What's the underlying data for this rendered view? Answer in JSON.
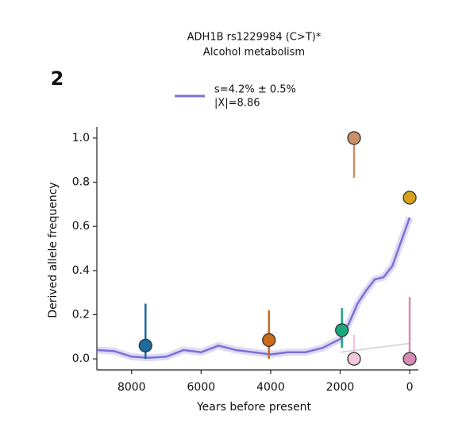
{
  "chart_data": {
    "type": "line",
    "panel_label": "2",
    "title": "ADH1B rs1229984 (C>T)*",
    "subtitle": "Alcohol metabolism",
    "xlabel": "Years before present",
    "ylabel": "Derived allele frequency",
    "xlim": [
      9000,
      -250
    ],
    "ylim": [
      -0.05,
      1.05
    ],
    "xticks": [
      8000,
      6000,
      4000,
      2000,
      0
    ],
    "yticks": [
      {
        "value": 0,
        "label": "0.0"
      },
      {
        "value": 0.2,
        "label": "0.2"
      },
      {
        "value": 0.4,
        "label": "0.4"
      },
      {
        "value": 0.6,
        "label": "0.6"
      },
      {
        "value": 0.8,
        "label": "0.8"
      },
      {
        "value": 1,
        "label": "1.0"
      }
    ],
    "series": [
      {
        "name": "s=4.2% ± 0.5%",
        "annotation": "|X|=8.86",
        "color": "#7b6fd6",
        "x": [
          9000,
          8500,
          8000,
          7500,
          7000,
          6500,
          6000,
          5500,
          5000,
          4500,
          4000,
          3500,
          3000,
          2500,
          2000,
          1750,
          1500,
          1250,
          1000,
          750,
          500,
          250,
          0
        ],
        "values": [
          0.04,
          0.035,
          0.01,
          0.005,
          0.01,
          0.04,
          0.03,
          0.06,
          0.04,
          0.03,
          0.02,
          0.03,
          0.03,
          0.05,
          0.09,
          0.16,
          0.25,
          0.31,
          0.36,
          0.37,
          0.42,
          0.53,
          0.64
        ]
      },
      {
        "color": "#d9d9d9",
        "x": [
          2000,
          0
        ],
        "values": [
          0.03,
          0.07
        ]
      }
    ],
    "points": {
      "x": [
        7600,
        4050,
        1950,
        1600,
        1600,
        0,
        0
      ],
      "values": [
        0.06,
        0.085,
        0.13,
        1.0,
        0.0,
        0.73,
        0.0
      ],
      "lo": [
        0.0,
        0.0,
        0.05,
        0.82,
        0.0,
        0.73,
        0.0
      ],
      "hi": [
        0.25,
        0.22,
        0.23,
        1.0,
        0.11,
        0.73,
        0.28
      ],
      "colors": [
        "#1d6b9a",
        "#cc6a1e",
        "#1ca77b",
        "#c98f67",
        "#f2c6dc",
        "#d6a21a",
        "#d48cb4"
      ]
    }
  }
}
